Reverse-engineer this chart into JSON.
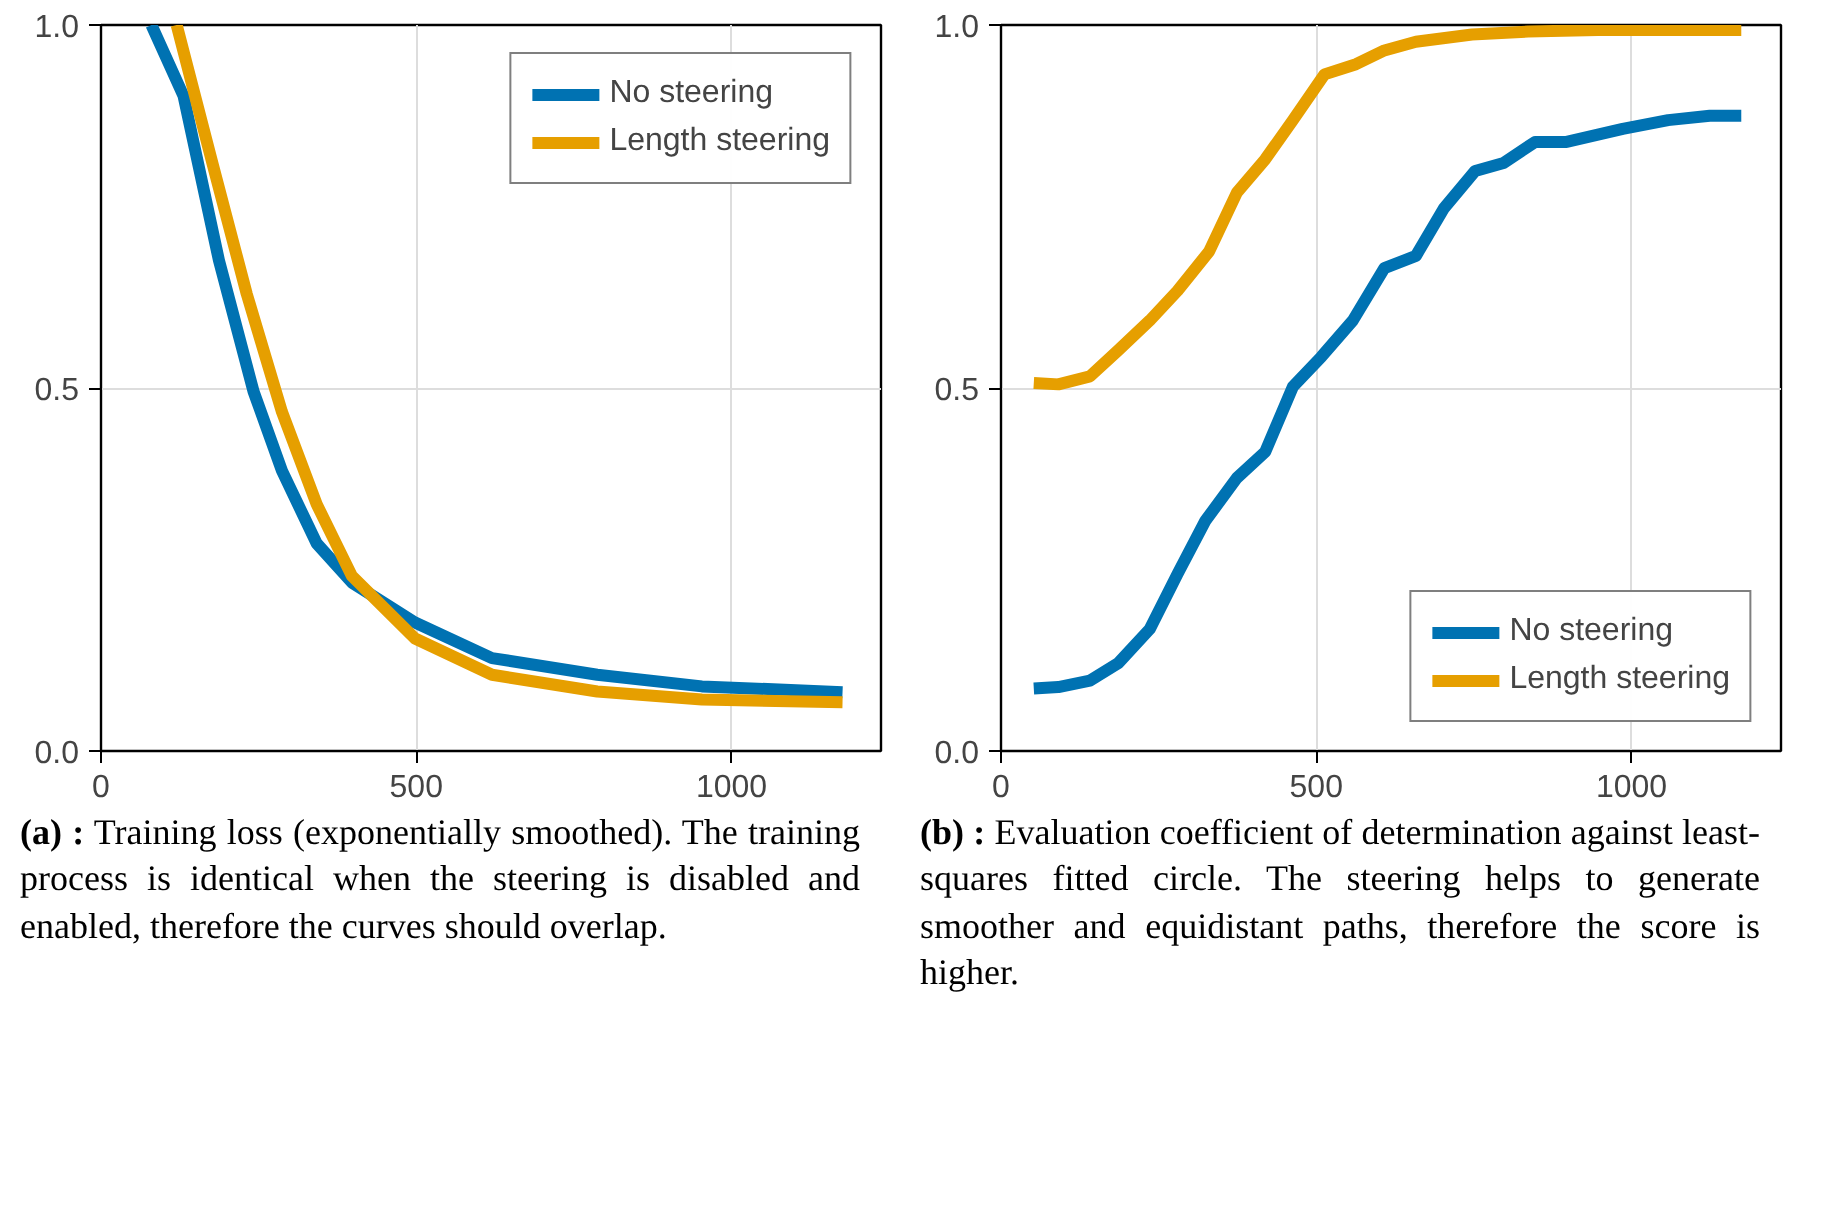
{
  "chart_data": [
    {
      "type": "line",
      "xlim": [
        0,
        1237
      ],
      "ylim": [
        0,
        1
      ],
      "xticks": [
        0,
        500,
        1000
      ],
      "yticks": [
        {
          "value": 0,
          "label": "0.0"
        },
        {
          "value": 0.5,
          "label": "0.5"
        },
        {
          "value": 1,
          "label": "1.0"
        }
      ],
      "grid": true,
      "legend": "top right",
      "line_style": "solid",
      "marker": "none",
      "series": [
        {
          "name": "No steering",
          "color": "#0072b2",
          "x": [
            80,
            131,
            187,
            242,
            287,
            342,
            398,
            498,
            620,
            787,
            953,
            1176
          ],
          "values": [
            1.0,
            0.902,
            0.676,
            0.495,
            0.386,
            0.286,
            0.232,
            0.177,
            0.128,
            0.105,
            0.089,
            0.081
          ]
        },
        {
          "name": "Length steering",
          "color": "#e69f00",
          "x": [
            120,
            176,
            231,
            287,
            342,
            398,
            498,
            620,
            787,
            953,
            1176
          ],
          "values": [
            1.0,
            0.812,
            0.63,
            0.467,
            0.34,
            0.241,
            0.155,
            0.105,
            0.082,
            0.071,
            0.067
          ]
        }
      ],
      "annotations": [
        "(a) :",
        "Training loss (exponentially smoothed). The training process is identical when the steering is disabled and enabled, therefore the curves should overlap."
      ]
    },
    {
      "type": "line",
      "xlim": [
        0,
        1237
      ],
      "ylim": [
        0,
        1
      ],
      "xticks": [
        0,
        500,
        1000
      ],
      "yticks": [
        {
          "value": 0,
          "label": "0.0"
        },
        {
          "value": 0.5,
          "label": "0.5"
        },
        {
          "value": 1,
          "label": "1.0"
        }
      ],
      "grid": true,
      "legend": "bottom right",
      "line_style": "solid",
      "marker": "none",
      "series": [
        {
          "name": "No steering",
          "color": "#0072b2",
          "x": [
            52,
            91,
            141,
            186,
            236,
            280,
            324,
            374,
            419,
            463,
            508,
            558,
            608,
            658,
            702,
            752,
            797,
            847,
            897,
            986,
            1058,
            1124,
            1174
          ],
          "values": [
            0.086,
            0.088,
            0.097,
            0.121,
            0.168,
            0.244,
            0.317,
            0.376,
            0.412,
            0.502,
            0.543,
            0.593,
            0.665,
            0.682,
            0.747,
            0.799,
            0.81,
            0.839,
            0.839,
            0.857,
            0.869,
            0.875,
            0.875
          ]
        },
        {
          "name": "Length steering",
          "color": "#e69f00",
          "x": [
            52,
            91,
            141,
            186,
            236,
            280,
            330,
            374,
            419,
            463,
            513,
            563,
            608,
            658,
            747,
            836,
            947,
            1174
          ],
          "values": [
            0.507,
            0.505,
            0.516,
            0.552,
            0.593,
            0.634,
            0.688,
            0.769,
            0.815,
            0.869,
            0.932,
            0.946,
            0.965,
            0.977,
            0.987,
            0.991,
            0.993,
            0.993
          ]
        }
      ],
      "annotations": [
        "(b) :",
        "Evaluation coefficient of determination against least-squares fitted circle. The steering helps to generate smoother and equidistant paths, therefore the score is higher."
      ]
    }
  ]
}
